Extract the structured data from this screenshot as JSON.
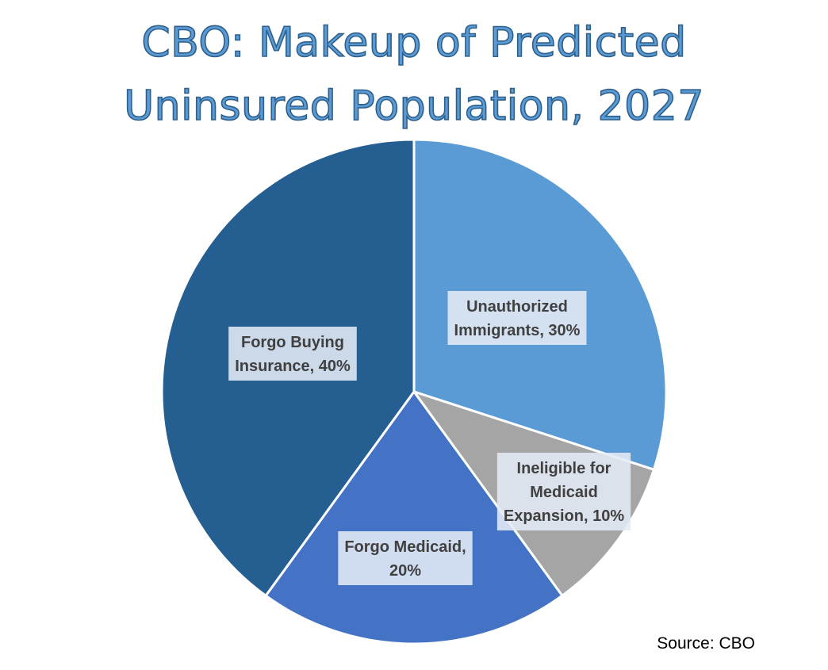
{
  "chart_data": {
    "type": "pie",
    "title_lines": [
      "CBO: Makeup of Predicted",
      "Uninsured Population, 2027"
    ],
    "slices": [
      {
        "label_lines": [
          "Unauthorized",
          "Immigrants, 30%"
        ],
        "value": 30,
        "color": "#5b9bd5"
      },
      {
        "label_lines": [
          "Ineligible for",
          "Medicaid",
          "Expansion, 10%"
        ],
        "value": 10,
        "color": "#a5a5a5"
      },
      {
        "label_lines": [
          "Forgo Medicaid,",
          "20%"
        ],
        "value": 20,
        "color": "#4472c4"
      },
      {
        "label_lines": [
          "Forgo Buying",
          "Insurance, 40%"
        ],
        "value": 40,
        "color": "#255e91"
      }
    ],
    "start": "12 o'clock",
    "direction": "clockwise",
    "legend": "none",
    "source": "Source: CBO"
  }
}
